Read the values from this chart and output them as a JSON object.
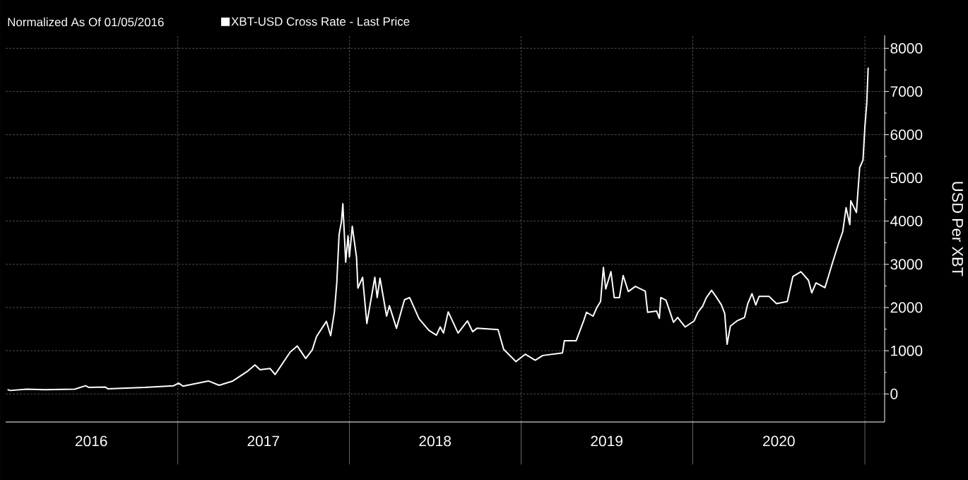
{
  "chart_data": {
    "type": "line",
    "subtitle": "Normalized As Of 01/05/2016",
    "ylabel": "USD Per XBT",
    "xlim": [
      "2016-01-01",
      "2021-02-12"
    ],
    "ylim": [
      -650,
      8300
    ],
    "yticks": [
      0,
      1000,
      2000,
      3000,
      4000,
      5000,
      6000,
      7000,
      8000
    ],
    "xticks": [
      {
        "value": "2017-01-01",
        "label": null
      },
      {
        "value": "2018-01-01",
        "label": null
      },
      {
        "value": "2019-01-01",
        "label": null
      },
      {
        "value": "2020-01-01",
        "label": null
      },
      {
        "value": "2021-01-01",
        "label": null
      },
      {
        "value": "2016-07-01",
        "label": "2016"
      },
      {
        "value": "2017-07-02",
        "label": "2017"
      },
      {
        "value": "2018-07-02",
        "label": "2018"
      },
      {
        "value": "2019-07-02",
        "label": "2019"
      },
      {
        "value": "2020-07-02",
        "label": "2020"
      }
    ],
    "grid": true,
    "legend": "top left",
    "line_style": "solid",
    "marker": "none",
    "x": [
      "2016-01-05",
      "2016-01-11",
      "2016-02-15",
      "2016-03-24",
      "2016-05-27",
      "2016-06-19",
      "2016-06-26",
      "2016-07-31",
      "2016-08-05",
      "2016-10-23",
      "2016-12-23",
      "2017-01-03",
      "2017-01-12",
      "2017-03-07",
      "2017-03-30",
      "2017-04-28",
      "2017-05-30",
      "2017-06-14",
      "2017-06-25",
      "2017-07-16",
      "2017-07-27",
      "2017-08-28",
      "2017-09-12",
      "2017-09-30",
      "2017-10-14",
      "2017-10-23",
      "2017-11-13",
      "2017-11-22",
      "2017-11-30",
      "2017-12-05",
      "2017-12-10",
      "2017-12-15",
      "2017-12-18",
      "2017-12-24",
      "2017-12-29",
      "2018-01-01",
      "2018-01-07",
      "2018-01-16",
      "2018-01-19",
      "2018-01-29",
      "2018-02-07",
      "2018-02-24",
      "2018-03-01",
      "2018-03-07",
      "2018-03-21",
      "2018-03-27",
      "2018-04-11",
      "2018-04-28",
      "2018-05-09",
      "2018-05-29",
      "2018-06-19",
      "2018-07-05",
      "2018-07-13",
      "2018-07-20",
      "2018-07-30",
      "2018-08-20",
      "2018-09-09",
      "2018-09-20",
      "2018-09-29",
      "2018-11-13",
      "2018-11-25",
      "2018-12-21",
      "2019-01-10",
      "2019-01-31",
      "2019-02-16",
      "2019-03-30",
      "2019-04-03",
      "2019-04-28",
      "2019-05-14",
      "2019-05-20",
      "2019-06-03",
      "2019-06-11",
      "2019-06-19",
      "2019-06-25",
      "2019-06-30",
      "2019-07-11",
      "2019-07-18",
      "2019-07-29",
      "2019-08-06",
      "2019-08-17",
      "2019-09-01",
      "2019-09-22",
      "2019-09-27",
      "2019-10-16",
      "2019-10-22",
      "2019-10-25",
      "2019-11-05",
      "2019-11-21",
      "2019-11-30",
      "2019-12-16",
      "2020-01-04",
      "2020-01-12",
      "2020-01-22",
      "2020-01-30",
      "2020-02-10",
      "2020-02-19",
      "2020-03-02",
      "2020-03-09",
      "2020-03-14",
      "2020-03-21",
      "2020-04-04",
      "2020-04-20",
      "2020-04-27",
      "2020-05-06",
      "2020-05-14",
      "2020-05-21",
      "2020-06-11",
      "2020-06-27",
      "2020-07-20",
      "2020-08-01",
      "2020-08-18",
      "2020-09-03",
      "2020-09-10",
      "2020-09-19",
      "2020-10-08",
      "2020-10-14",
      "2020-10-24",
      "2020-11-06",
      "2020-11-15",
      "2020-11-22",
      "2020-11-30",
      "2020-12-02",
      "2020-12-14",
      "2020-12-21",
      "2020-12-28",
      "2021-01-01",
      "2021-01-05",
      "2021-01-08"
    ],
    "series": [
      {
        "name": "XBT-USD Cross Rate - Last Price",
        "color": "#ffffff",
        "values": [
          100,
          80,
          110,
          100,
          110,
          190,
          150,
          160,
          120,
          150,
          190,
          250,
          180,
          300,
          200,
          300,
          530,
          670,
          560,
          590,
          450,
          970,
          1110,
          820,
          1020,
          1330,
          1680,
          1350,
          1900,
          2560,
          3690,
          3990,
          4400,
          3050,
          3660,
          3170,
          3880,
          3170,
          2450,
          2700,
          1630,
          2700,
          2230,
          2680,
          1800,
          2040,
          1520,
          2180,
          2230,
          1740,
          1470,
          1360,
          1550,
          1410,
          1900,
          1410,
          1690,
          1440,
          1520,
          1490,
          1030,
          750,
          920,
          780,
          890,
          950,
          1230,
          1230,
          1690,
          1890,
          1800,
          2000,
          2140,
          2930,
          2430,
          2830,
          2230,
          2230,
          2740,
          2370,
          2490,
          2380,
          1890,
          1920,
          1750,
          2230,
          2170,
          1660,
          1770,
          1550,
          1690,
          1890,
          2030,
          2230,
          2400,
          2260,
          2060,
          1860,
          1150,
          1570,
          1690,
          1770,
          2090,
          2320,
          2060,
          2260,
          2260,
          2090,
          2140,
          2720,
          2830,
          2630,
          2340,
          2570,
          2460,
          2670,
          3030,
          3480,
          3760,
          4310,
          3920,
          4470,
          4200,
          5240,
          5410,
          6180,
          6730,
          7550
        ]
      }
    ]
  }
}
